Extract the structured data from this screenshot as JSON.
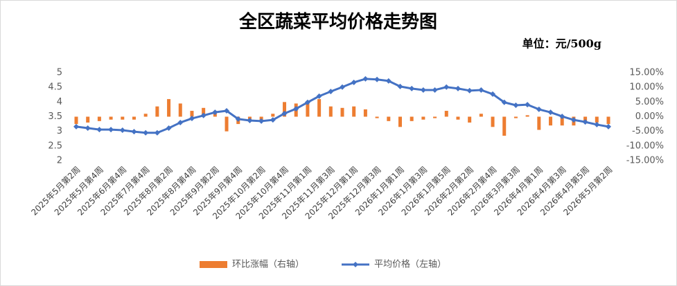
{
  "chart_data": {
    "type": "bar-line",
    "title": "全区蔬菜平均价格走势图",
    "subtitle": "单位：元/500g",
    "categories": [
      "2025年5月第2周",
      null,
      "2025年5月第4周",
      null,
      "2025年6月第4周",
      null,
      "2025年7月第4周",
      null,
      "2025年8月第2周",
      null,
      "2025年8月第4周",
      null,
      "2025年9月第2周",
      null,
      "2025年9月第4周",
      null,
      "2025年10月第2周",
      null,
      "2025年10月第4周",
      null,
      "2025年11月第1周",
      null,
      "2025年11月第3周",
      null,
      "2025年12月第1周",
      null,
      "2025年12月第3周",
      null,
      "2026年1月第1周",
      null,
      "2026年1月第3周",
      null,
      "2026年1月第5周",
      null,
      "2026年2月第2周",
      null,
      "2026年2月第4周",
      null,
      "2026年3月第3周",
      null,
      "2026年4月第1周",
      null,
      "2026年4月第3周",
      null,
      "2026年4月第5周",
      null,
      "2026年5月第2周"
    ],
    "series": [
      {
        "name": "环比涨幅（右轴）",
        "type": "bar",
        "axis": "y2",
        "color": "#ed7d31",
        "values": [
          -2.5,
          -2,
          -1.5,
          -1,
          -1,
          -1,
          1,
          3.5,
          6,
          4.5,
          2,
          3,
          2,
          -5,
          -2.5,
          -1,
          -1.5,
          1,
          5,
          4.5,
          4.5,
          6,
          3.5,
          3,
          3.5,
          2.5,
          -0.5,
          -1.5,
          -3.5,
          -1.5,
          -1,
          -0.5,
          2,
          -1,
          -2,
          1,
          -3.5,
          -6.5,
          -0.5,
          0.5,
          -4.5,
          -3,
          -3,
          -3,
          -2,
          -2,
          -2.5
        ]
      },
      {
        "name": "平均价格（左轴）",
        "type": "line",
        "axis": "y",
        "color": "#4472c4",
        "values": [
          3.16,
          3.11,
          3.06,
          3.06,
          3.04,
          2.99,
          2.95,
          2.95,
          3.11,
          3.3,
          3.44,
          3.54,
          3.65,
          3.7,
          3.42,
          3.37,
          3.35,
          3.39,
          3.61,
          3.77,
          3.99,
          4.2,
          4.36,
          4.51,
          4.67,
          4.79,
          4.77,
          4.72,
          4.53,
          4.46,
          4.41,
          4.41,
          4.51,
          4.46,
          4.39,
          4.41,
          4.27,
          3.99,
          3.89,
          3.91,
          3.75,
          3.65,
          3.51,
          3.39,
          3.32,
          3.23,
          3.16
        ]
      }
    ],
    "ylim": [
      2,
      5
    ],
    "yticks": [
      2,
      2.5,
      3,
      3.5,
      4,
      4.5,
      5
    ],
    "y2lim": [
      -15,
      15
    ],
    "y2ticks": [
      {
        "value": -15,
        "label": "-15.00%"
      },
      {
        "value": -10,
        "label": "-10.00%"
      },
      {
        "value": -5,
        "label": "-5.00%"
      },
      {
        "value": 0,
        "label": "0.00%"
      },
      {
        "value": 5,
        "label": "5.00%"
      },
      {
        "value": 10,
        "label": "10.00%"
      },
      {
        "value": 15,
        "label": "15.00%"
      }
    ],
    "legend": "bottom"
  }
}
